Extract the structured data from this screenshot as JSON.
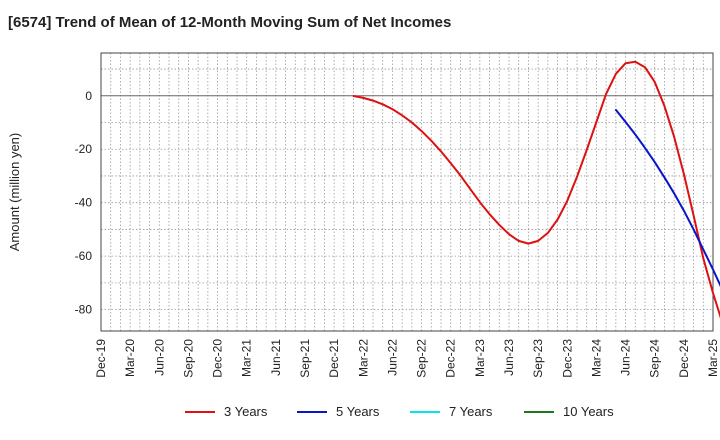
{
  "chart_data": {
    "type": "line",
    "title": "[6574]  Trend of Mean of 12-Month Moving Sum of Net Incomes",
    "xlabel": "",
    "ylabel": "Amount (million yen)",
    "ylim": [
      -88,
      16
    ],
    "yticks": [
      0,
      -20,
      -40,
      -60,
      -80
    ],
    "ytick_labels": [
      "0",
      "-20",
      "-40",
      "-60",
      "-80"
    ],
    "xlim": [
      "2019-12",
      "2025-03"
    ],
    "xtick_labels": [
      "Dec-19",
      "Mar-20",
      "Jun-20",
      "Sep-20",
      "Dec-20",
      "Mar-21",
      "Jun-21",
      "Sep-21",
      "Dec-21",
      "Mar-22",
      "Jun-22",
      "Sep-22",
      "Dec-22",
      "Mar-23",
      "Jun-23",
      "Sep-23",
      "Dec-23",
      "Mar-24",
      "Jun-24",
      "Sep-24",
      "Dec-24",
      "Mar-25"
    ],
    "grid": true,
    "legend_position": "bottom",
    "series": [
      {
        "name": "3 Years",
        "color": "#dd1111",
        "points": [
          [
            "2022-02",
            -0.1
          ],
          [
            "2022-03",
            -0.8
          ],
          [
            "2022-04",
            -1.8
          ],
          [
            "2022-05",
            -3.2
          ],
          [
            "2022-06",
            -5.0
          ],
          [
            "2022-07",
            -7.3
          ],
          [
            "2022-08",
            -10.0
          ],
          [
            "2022-09",
            -13.2
          ],
          [
            "2022-10",
            -16.8
          ],
          [
            "2022-11",
            -20.8
          ],
          [
            "2022-12",
            -25.2
          ],
          [
            "2023-01",
            -29.8
          ],
          [
            "2023-02",
            -34.8
          ],
          [
            "2023-03",
            -39.8
          ],
          [
            "2023-04",
            -44.3
          ],
          [
            "2023-05",
            -48.3
          ],
          [
            "2023-06",
            -51.8
          ],
          [
            "2023-07",
            -54.3
          ],
          [
            "2023-08",
            -55.3
          ],
          [
            "2023-09",
            -54.3
          ],
          [
            "2023-10",
            -51.3
          ],
          [
            "2023-11",
            -46.3
          ],
          [
            "2023-12",
            -39.3
          ],
          [
            "2024-01",
            -30.3
          ],
          [
            "2024-02",
            -20.3
          ],
          [
            "2024-03",
            -9.8
          ],
          [
            "2024-04",
            0.7
          ],
          [
            "2024-05",
            8.2
          ],
          [
            "2024-06",
            12.2
          ],
          [
            "2024-07",
            12.7
          ],
          [
            "2024-08",
            10.7
          ],
          [
            "2024-09",
            5.2
          ],
          [
            "2024-10",
            -3.8
          ],
          [
            "2024-11",
            -15.3
          ],
          [
            "2024-12",
            -29.3
          ],
          [
            "2025-01",
            -44.8
          ],
          [
            "2025-02",
            -60.8
          ],
          [
            "2025-03",
            -73.8
          ],
          [
            "2025-04",
            -85.3
          ]
        ]
      },
      {
        "name": "5 Years",
        "color": "#0a14c8",
        "points": [
          [
            "2024-05",
            -5.3
          ],
          [
            "2024-06",
            -9.8
          ],
          [
            "2024-07",
            -14.5
          ],
          [
            "2024-08",
            -19.5
          ],
          [
            "2024-09",
            -24.8
          ],
          [
            "2024-10",
            -30.5
          ],
          [
            "2024-11",
            -36.5
          ],
          [
            "2024-12",
            -43.0
          ],
          [
            "2025-01",
            -50.0
          ],
          [
            "2025-02",
            -57.5
          ],
          [
            "2025-03",
            -65.0
          ],
          [
            "2025-04",
            -72.8
          ]
        ]
      },
      {
        "name": "7 Years",
        "color": "#00e5ee",
        "points": []
      },
      {
        "name": "10 Years",
        "color": "#1a7a1a",
        "points": []
      }
    ]
  }
}
